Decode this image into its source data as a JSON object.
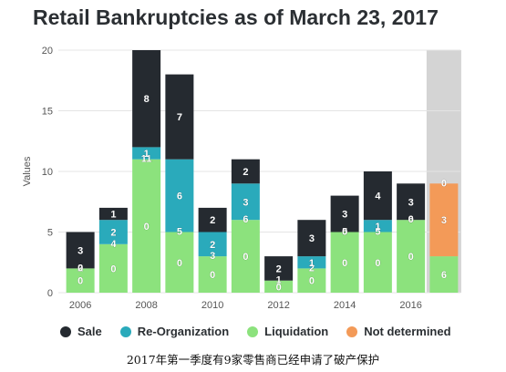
{
  "colors": {
    "Sale": "#252a30",
    "Re-Organization": "#2aaabb",
    "Liquidation": "#8ce27d",
    "Not determined": "#f39a58",
    "highlight": "#d4d4d4",
    "grid": "#e4e4e4"
  },
  "caption": "2017年第一季度有9家零售商已经申请了破产保护",
  "chart_data": {
    "type": "bar",
    "stacked": true,
    "title": "Retail Bankruptcies as of March 23, 2017",
    "ylabel": "Values",
    "xlabel": "",
    "ylim": [
      0,
      20
    ],
    "yticks": [
      0,
      5,
      10,
      15,
      20
    ],
    "xticks": [
      "2006",
      "2008",
      "2010",
      "2012",
      "2014",
      "2016"
    ],
    "categories": [
      "2006",
      "2007",
      "2008",
      "2009",
      "2010",
      "2011",
      "2012",
      "2013",
      "2014",
      "2015",
      "2016",
      "2017"
    ],
    "grid": true,
    "legend": "bottom",
    "highlight_category": "2017",
    "series": [
      {
        "name": "Liquidation",
        "values": [
          2,
          4,
          11,
          5,
          3,
          6,
          1,
          2,
          5,
          5,
          6,
          3
        ]
      },
      {
        "name": "Not determined",
        "values": [
          0,
          0,
          0,
          0,
          0,
          0,
          0,
          0,
          0,
          0,
          0,
          6
        ]
      },
      {
        "name": "Re-Organization",
        "values": [
          0,
          2,
          1,
          6,
          2,
          3,
          0,
          1,
          0,
          1,
          0,
          0
        ]
      },
      {
        "name": "Sale",
        "values": [
          3,
          1,
          8,
          7,
          2,
          2,
          2,
          3,
          3,
          4,
          3,
          0
        ]
      }
    ],
    "data_labels": [
      [
        "0",
        "2",
        "0",
        "3"
      ],
      [
        "0",
        "4",
        "2",
        "1"
      ],
      [
        "0",
        "11",
        "1",
        "8"
      ],
      [
        "0",
        "5",
        "6",
        "7"
      ],
      [
        "0",
        "3",
        "2",
        "2"
      ],
      [
        "0",
        "6",
        "3",
        "2"
      ],
      [
        "0",
        "1",
        "",
        "2"
      ],
      [
        "0",
        "2",
        "1",
        "3"
      ],
      [
        "0",
        "5",
        "0",
        "3"
      ],
      [
        "0",
        "5",
        "1",
        "4"
      ],
      [
        "0",
        "6",
        "0",
        "3"
      ],
      [
        "6",
        "3",
        "0",
        ""
      ]
    ],
    "legend_entries": [
      "Sale",
      "Re-Organization",
      "Liquidation",
      "Not determined"
    ]
  }
}
